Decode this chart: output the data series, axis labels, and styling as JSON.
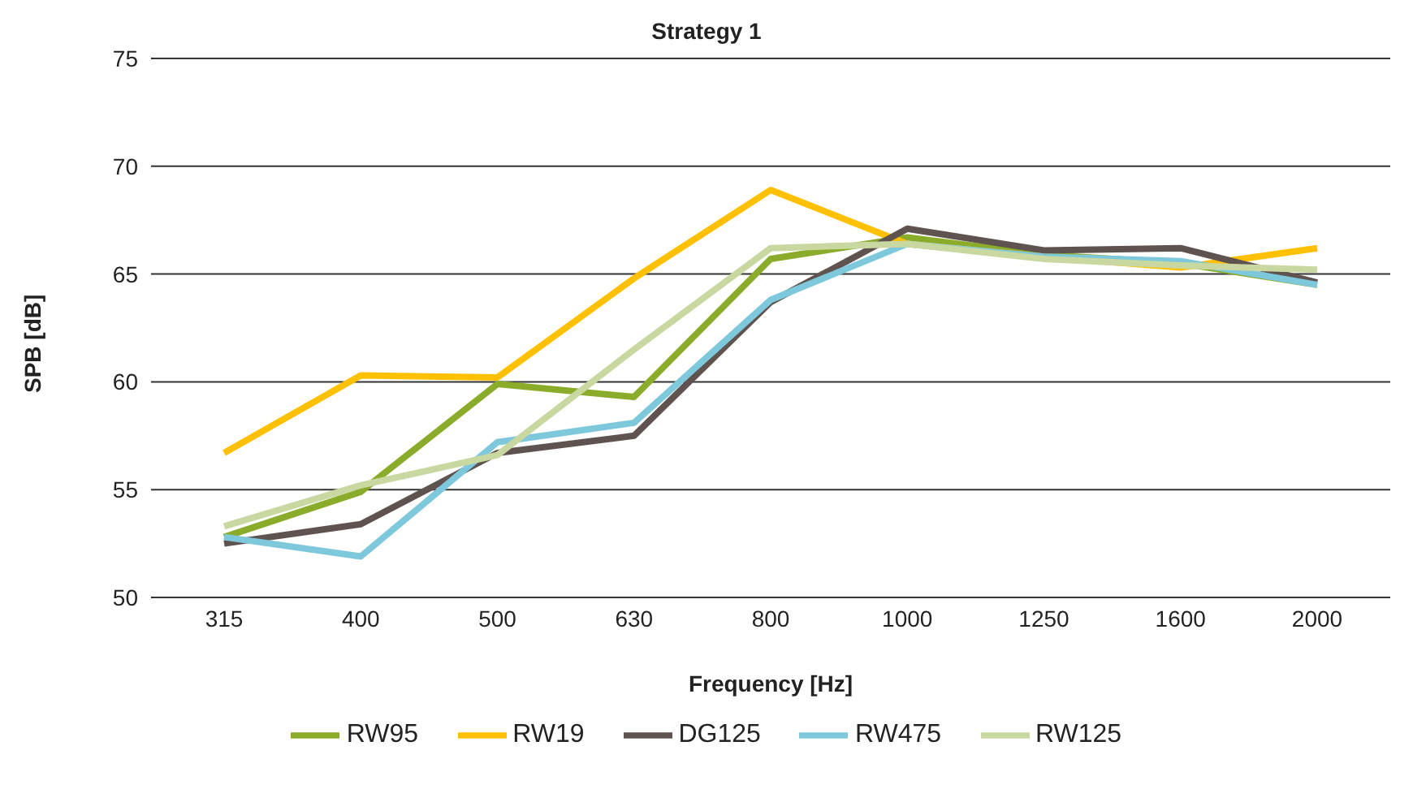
{
  "chart_data": {
    "type": "line",
    "title": "Strategy 1",
    "xlabel": "Frequency [Hz]",
    "ylabel": "SPB  [dB]",
    "categories": [
      "315",
      "400",
      "500",
      "630",
      "800",
      "1000",
      "1250",
      "1600",
      "2000"
    ],
    "series": [
      {
        "name": "RW95",
        "color": "#8aac2a",
        "values": [
          52.8,
          54.9,
          59.9,
          59.3,
          65.7,
          66.7,
          65.9,
          65.5,
          64.5
        ]
      },
      {
        "name": "RW19",
        "color": "#ffc000",
        "values": [
          56.7,
          60.3,
          60.2,
          64.8,
          68.9,
          66.4,
          65.8,
          65.3,
          66.2
        ]
      },
      {
        "name": "DG125",
        "color": "#5f5350",
        "values": [
          52.5,
          53.4,
          56.7,
          57.5,
          63.7,
          67.1,
          66.1,
          66.2,
          64.6
        ]
      },
      {
        "name": "RW475",
        "color": "#7ec8dc",
        "values": [
          52.8,
          51.9,
          57.2,
          58.1,
          63.8,
          66.4,
          65.8,
          65.6,
          64.5
        ]
      },
      {
        "name": "RW125",
        "color": "#c9d8a0",
        "values": [
          53.3,
          55.2,
          56.6,
          61.5,
          66.2,
          66.4,
          65.7,
          65.4,
          65.2
        ]
      }
    ],
    "ylim": [
      50,
      75
    ],
    "yticks": [
      50,
      55,
      60,
      65,
      70,
      75
    ],
    "grid": "y",
    "legend": "bottom",
    "marker": "none",
    "line_style": "solid"
  }
}
